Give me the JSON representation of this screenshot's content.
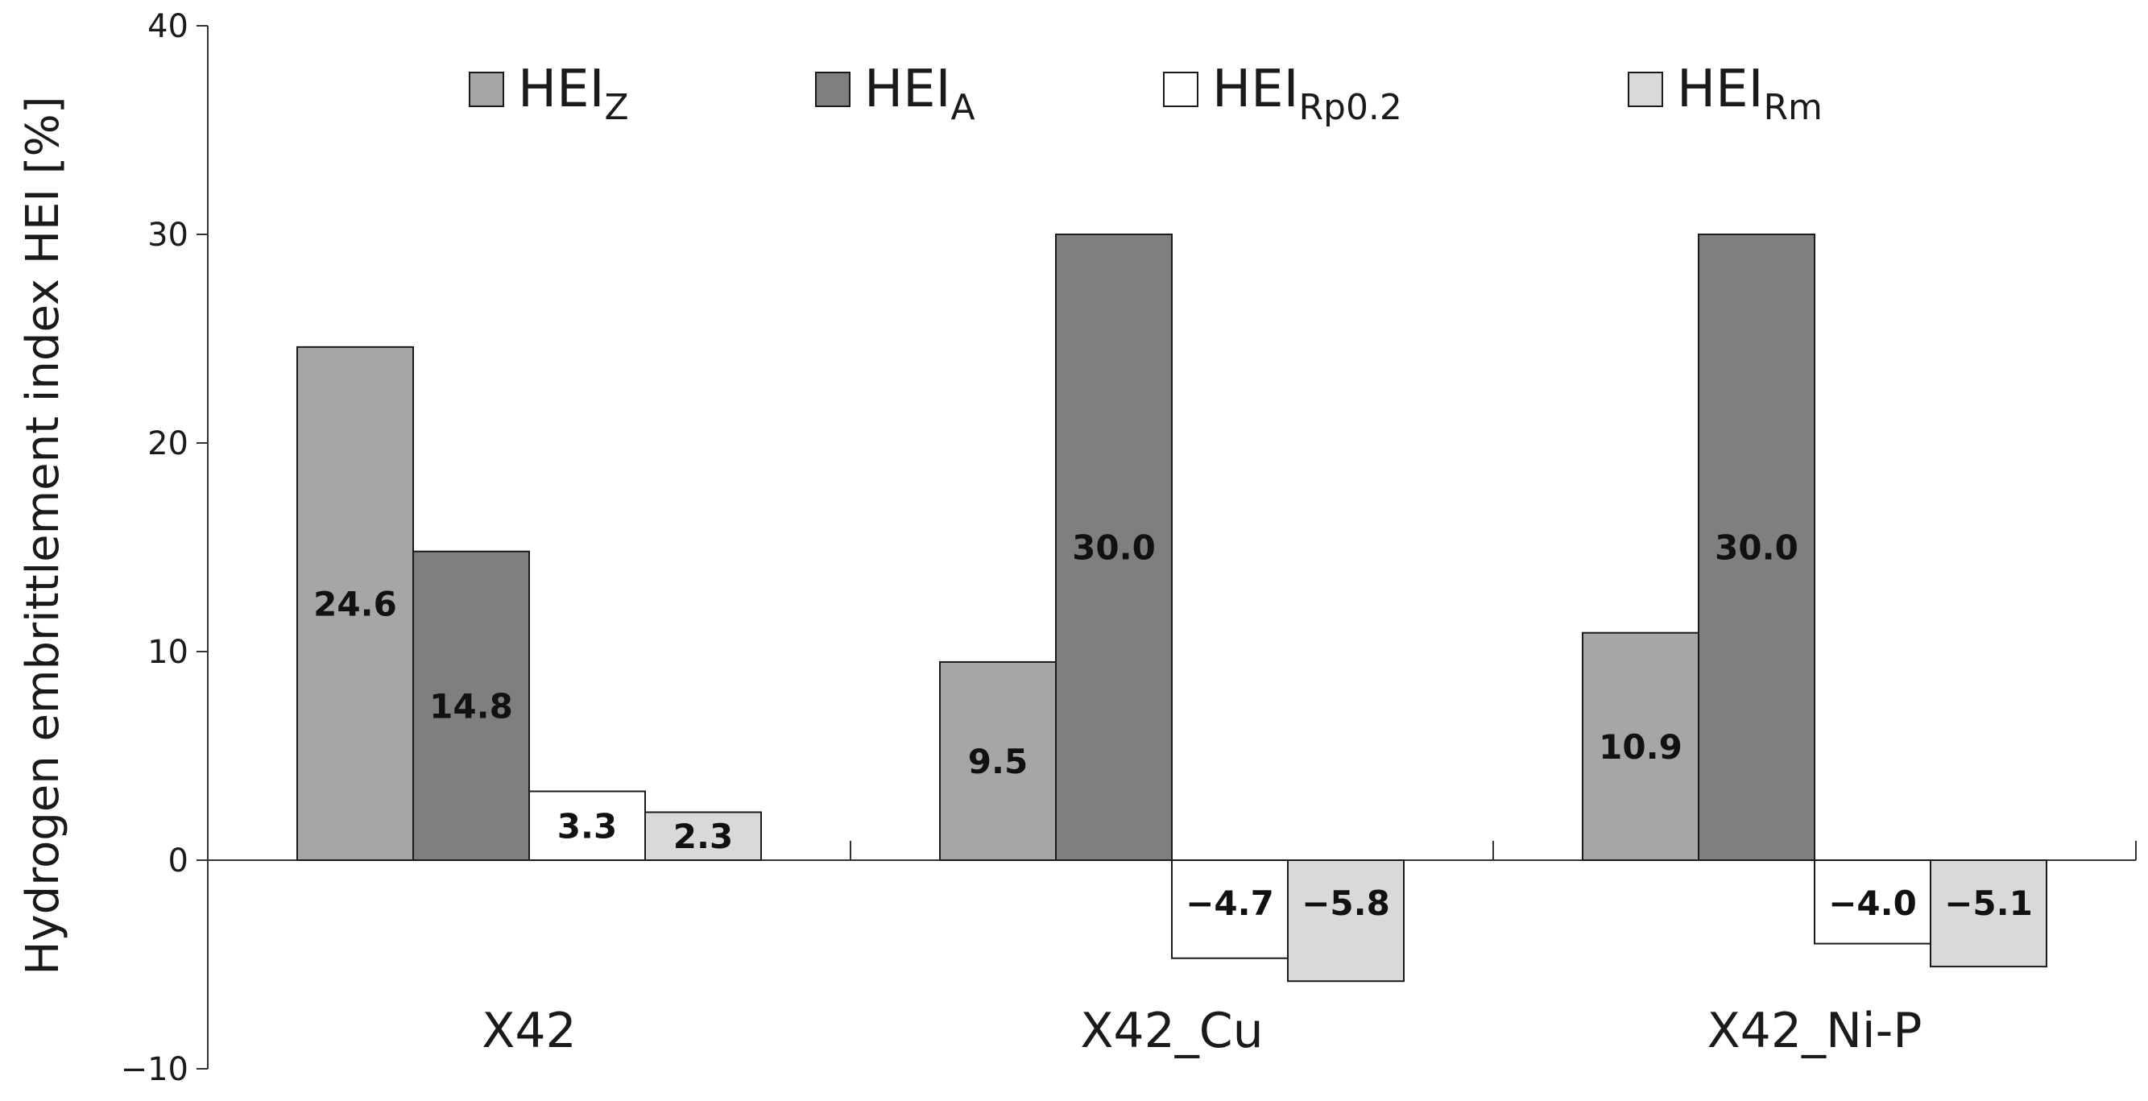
{
  "chart_data": {
    "type": "bar",
    "ylabel": "Hydrogen embrittlement index HEI [%]",
    "xlabel": "",
    "ylim": [
      -10,
      40
    ],
    "yticks": [
      -10,
      0,
      10,
      20,
      30,
      40
    ],
    "ytick_labels": [
      "−10",
      "0",
      "10",
      "20",
      "30",
      "40"
    ],
    "categories": [
      "X42",
      "X42_Cu",
      "X42_Ni-P"
    ],
    "legend_position": "top",
    "grid": false,
    "series": [
      {
        "name": "HEI",
        "sub": "Z",
        "color": "#a6a6a6",
        "values": [
          24.6,
          9.5,
          10.9
        ],
        "labels": [
          "24.6",
          "9.5",
          "10.9"
        ]
      },
      {
        "name": "HEI",
        "sub": "A",
        "color": "#7f7f7f",
        "values": [
          14.8,
          30.0,
          30.0
        ],
        "labels": [
          "14.8",
          "30.0",
          "30.0"
        ]
      },
      {
        "name": "HEI",
        "sub": "Rp0.2",
        "color": "#ffffff",
        "values": [
          3.3,
          -4.7,
          -4.0
        ],
        "labels": [
          "3.3",
          "−4.7",
          "−4.0"
        ]
      },
      {
        "name": "HEI",
        "sub": "Rm",
        "color": "#d9d9d9",
        "values": [
          2.3,
          -5.8,
          -5.1
        ],
        "labels": [
          "2.3",
          "−5.8",
          "−5.1"
        ]
      }
    ]
  }
}
